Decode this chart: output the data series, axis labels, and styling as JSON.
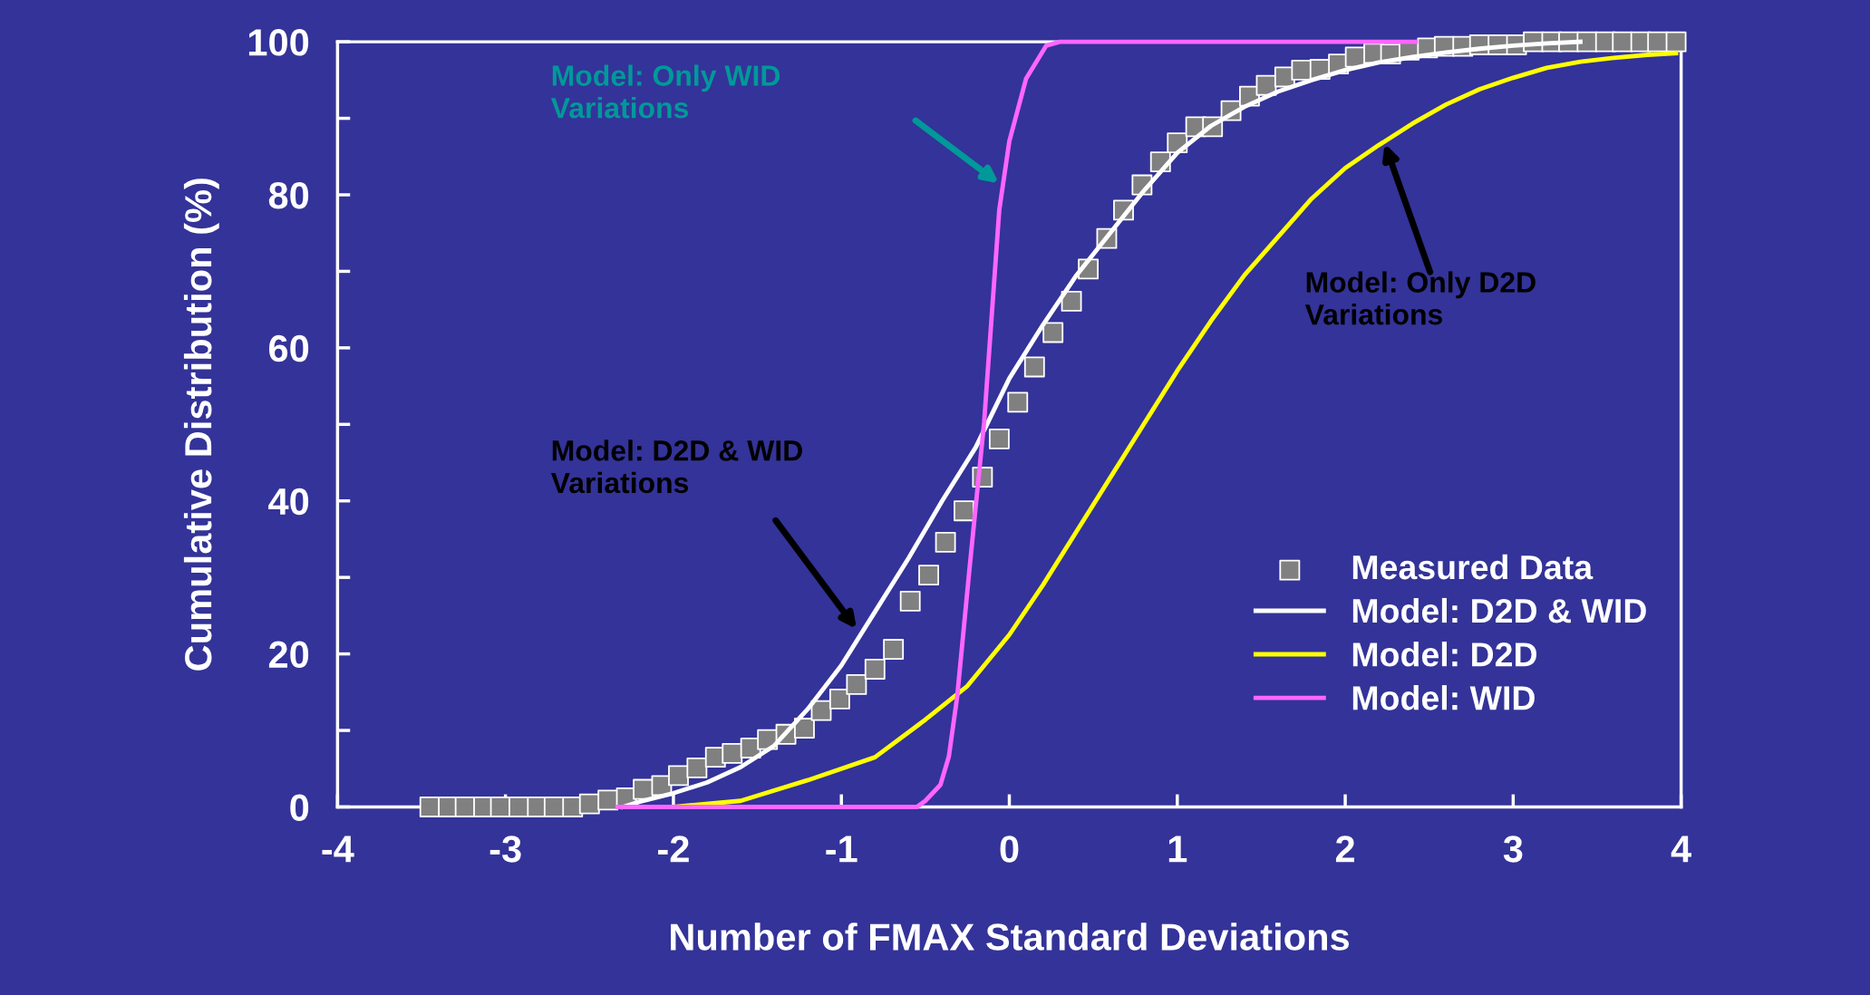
{
  "chart_data": {
    "type": "line",
    "xlabel": "Number of FMAX Standard Deviations",
    "ylabel": "Cumulative Distribution (%)",
    "xlim": [
      -4,
      4
    ],
    "xticks": [
      -4,
      -3,
      -2,
      -1,
      0,
      1,
      2,
      3,
      4
    ],
    "ylim": [
      0,
      100
    ],
    "yticks": [
      0,
      {
        "value": 10,
        "label": null
      },
      20,
      {
        "value": 30,
        "label": null
      },
      40,
      {
        "value": 50,
        "label": null
      },
      60,
      {
        "value": 70,
        "label": null
      },
      80,
      {
        "value": 90,
        "label": null
      },
      100
    ],
    "grid": false,
    "legend": "bottom right",
    "series": [
      {
        "name": "Measured Data",
        "type": "scatter",
        "marker": "square",
        "color": "#808080",
        "x": [
          -3.45,
          -3.34,
          -3.24,
          -3.13,
          -3.03,
          -2.92,
          -2.81,
          -2.71,
          -2.6,
          -2.5,
          -2.39,
          -2.28,
          -2.18,
          -2.07,
          -1.97,
          -1.86,
          -1.75,
          -1.65,
          -1.54,
          -1.44,
          -1.33,
          -1.22,
          -1.12,
          -1.01,
          -0.91,
          -0.8,
          -0.69,
          -0.59,
          -0.48,
          -0.38,
          -0.27,
          -0.16,
          -0.06,
          0.05,
          0.15,
          0.26,
          0.37,
          0.47,
          0.58,
          0.68,
          0.79,
          0.9,
          1.0,
          1.11,
          1.21,
          1.32,
          1.43,
          1.53,
          1.64,
          1.74,
          1.85,
          1.96,
          2.06,
          2.17,
          2.27,
          2.38,
          2.49,
          2.59,
          2.7,
          2.8,
          2.91,
          3.02,
          3.12,
          3.23,
          3.33,
          3.44,
          3.55,
          3.65,
          3.76,
          3.86,
          3.97
        ],
        "values": [
          0,
          0,
          0,
          0,
          0,
          0,
          0,
          0,
          0,
          0.4,
          0.9,
          1.2,
          2.3,
          2.8,
          4.1,
          5.1,
          6.5,
          7.0,
          7.7,
          8.8,
          9.5,
          10.3,
          12.6,
          14.1,
          16.0,
          18.0,
          20.6,
          26.9,
          30.3,
          34.6,
          38.7,
          43.1,
          48.1,
          52.9,
          57.5,
          62.0,
          66.1,
          70.3,
          74.3,
          78.0,
          81.3,
          84.3,
          86.8,
          88.9,
          88.9,
          91.0,
          92.9,
          94.3,
          95.4,
          96.3,
          96.4,
          97.1,
          98.0,
          98.5,
          98.4,
          98.9,
          99.2,
          99.4,
          99.4,
          99.6,
          99.6,
          99.6,
          100,
          100,
          100,
          100,
          100,
          100,
          100,
          100,
          100
        ]
      },
      {
        "name": "Model: D2D & WID",
        "color": "#ffffff",
        "x": [
          -2.3,
          -2.2,
          -2.0,
          -1.8,
          -1.6,
          -1.4,
          -1.2,
          -1.0,
          -0.8,
          -0.6,
          -0.4,
          -0.2,
          0,
          0.2,
          0.4,
          0.6,
          0.8,
          1.0,
          1.2,
          1.4,
          1.6,
          1.8,
          2.0,
          2.2,
          2.4,
          2.6,
          2.8,
          3.0,
          3.2,
          3.4
        ],
        "values": [
          0,
          0.7,
          1.8,
          3.2,
          5.2,
          8,
          12.8,
          18.5,
          25.5,
          32.5,
          40,
          47,
          56,
          63,
          69.5,
          75,
          80.5,
          85.5,
          89,
          91.5,
          93.5,
          95,
          96.3,
          97.3,
          98,
          98.6,
          99.1,
          99.5,
          99.8,
          100
        ]
      },
      {
        "name": "Model: D2D",
        "color": "#ffff00",
        "x": [
          -2.0,
          -1.6,
          -1.2,
          -0.8,
          -0.5,
          -0.25,
          0,
          0.2,
          0.4,
          0.6,
          0.8,
          1.0,
          1.2,
          1.4,
          1.6,
          1.8,
          2.0,
          2.2,
          2.4,
          2.6,
          2.8,
          3.0,
          3.2,
          3.4,
          3.6,
          3.8,
          3.97
        ],
        "values": [
          0,
          0.8,
          3.5,
          6.5,
          11.4,
          15.8,
          22.5,
          29,
          36,
          43,
          50,
          57,
          63.5,
          69.5,
          74.5,
          79.5,
          83.5,
          86.5,
          89.3,
          91.8,
          93.8,
          95.3,
          96.6,
          97.4,
          97.9,
          98.3,
          98.5
        ]
      },
      {
        "name": "Model: WID",
        "color": "#ff66ff",
        "x": [
          -2.33,
          -0.55,
          -0.5,
          -0.41,
          -0.36,
          -0.31,
          -0.24,
          -0.15,
          -0.06,
          0,
          0.1,
          0.22,
          0.3,
          2.42
        ],
        "values": [
          0,
          0,
          0.8,
          2.9,
          6.6,
          14.5,
          30.5,
          50.3,
          78,
          87,
          95.2,
          99.5,
          100,
          100
        ]
      }
    ],
    "annotations": [
      "Model: Only WID\nVariations",
      "Model: D2D & WID\nVariations",
      "Model: Only D2D\nVariations"
    ]
  }
}
